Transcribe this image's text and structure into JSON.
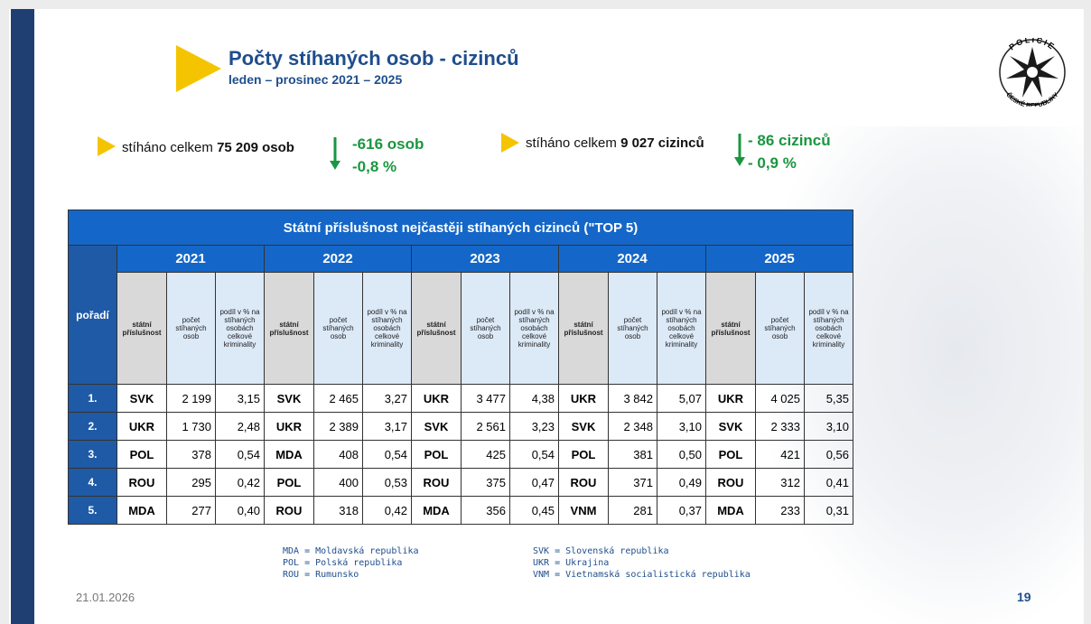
{
  "header": {
    "title": "Počty stíhaných osob - cizinců",
    "subtitle": "leden – prosinec 2021 – 2025"
  },
  "logo": {
    "top": "POLICIE",
    "bottom": "ČESKÉ REPUBLIKY"
  },
  "summary": [
    {
      "label": "stíháno celkem",
      "value": "75 209 osob",
      "change": "-616 osob",
      "change_pct": "-0,8 %"
    },
    {
      "label": "stíháno celkem",
      "value": "9 027 cizinců",
      "change": "- 86 cizinců",
      "change_pct": "- 0,9 %"
    }
  ],
  "table": {
    "title": "Státní příslušnost nejčastěji stíhaných cizinců (\"TOP 5)",
    "rank_header": "pořadí",
    "years": [
      "2021",
      "2022",
      "2023",
      "2024",
      "2025"
    ],
    "subheaders": [
      "státní příslušnost",
      "počet stíhaných osob",
      "podíl v % na stíhaných osobách celkové kriminality"
    ],
    "rows": [
      {
        "rank": "1.",
        "cells": [
          [
            "SVK",
            "2 199",
            "3,15"
          ],
          [
            "SVK",
            "2 465",
            "3,27"
          ],
          [
            "UKR",
            "3 477",
            "4,38"
          ],
          [
            "UKR",
            "3 842",
            "5,07"
          ],
          [
            "UKR",
            "4 025",
            "5,35"
          ]
        ]
      },
      {
        "rank": "2.",
        "cells": [
          [
            "UKR",
            "1 730",
            "2,48"
          ],
          [
            "UKR",
            "2 389",
            "3,17"
          ],
          [
            "SVK",
            "2 561",
            "3,23"
          ],
          [
            "SVK",
            "2 348",
            "3,10"
          ],
          [
            "SVK",
            "2 333",
            "3,10"
          ]
        ]
      },
      {
        "rank": "3.",
        "cells": [
          [
            "POL",
            "378",
            "0,54"
          ],
          [
            "MDA",
            "408",
            "0,54"
          ],
          [
            "POL",
            "425",
            "0,54"
          ],
          [
            "POL",
            "381",
            "0,50"
          ],
          [
            "POL",
            "421",
            "0,56"
          ]
        ]
      },
      {
        "rank": "4.",
        "cells": [
          [
            "ROU",
            "295",
            "0,42"
          ],
          [
            "POL",
            "400",
            "0,53"
          ],
          [
            "ROU",
            "375",
            "0,47"
          ],
          [
            "ROU",
            "371",
            "0,49"
          ],
          [
            "ROU",
            "312",
            "0,41"
          ]
        ]
      },
      {
        "rank": "5.",
        "cells": [
          [
            "MDA",
            "277",
            "0,40"
          ],
          [
            "ROU",
            "318",
            "0,42"
          ],
          [
            "MDA",
            "356",
            "0,45"
          ],
          [
            "VNM",
            "281",
            "0,37"
          ],
          [
            "MDA",
            "233",
            "0,31"
          ]
        ]
      }
    ]
  },
  "legend": {
    "left": [
      "MDA = Moldavská republika",
      "POL = Polská republika",
      "ROU = Rumunsko"
    ],
    "right": [
      "SVK = Slovenská republika",
      "UKR = Ukrajina",
      "VNM = Vietnamská socialistická republika"
    ]
  },
  "footer": {
    "date": "21.01.2026",
    "page": "19"
  }
}
